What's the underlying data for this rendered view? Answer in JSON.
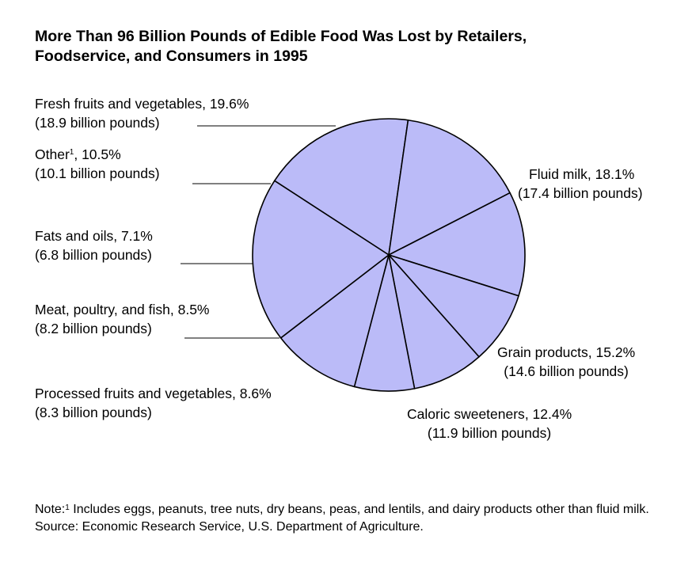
{
  "chart_data": {
    "type": "pie",
    "title_line1": "More Than 96 Billion Pounds of Edible Food Was Lost by Retailers,",
    "title_line2": "Foodservice, and Consumers in 1995",
    "slices": [
      {
        "name": "Fluid milk",
        "pct_label": ", 18.1%",
        "percent": 18.1,
        "amount": "(17.4 billion pounds)"
      },
      {
        "name": "Grain products",
        "pct_label": ", 15.2%",
        "percent": 15.2,
        "amount": "(14.6 billion pounds)"
      },
      {
        "name": "Caloric sweeteners",
        "pct_label": ", 12.4%",
        "percent": 12.4,
        "amount": "(11.9 billion pounds)"
      },
      {
        "name": "Processed fruits and vegetables",
        "pct_label": ",  8.6%",
        "percent": 8.6,
        "amount": "(8.3 billion pounds)"
      },
      {
        "name": "Meat, poultry, and fish",
        "pct_label": ", 8.5%",
        "percent": 8.5,
        "amount": "(8.2 billion pounds)"
      },
      {
        "name": "Fats and oils",
        "pct_label": ", 7.1%",
        "percent": 7.1,
        "amount": "(6.8 billion pounds)"
      },
      {
        "name": "Other",
        "footnote": "1",
        "pct_label": ", 10.5%",
        "percent": 10.5,
        "amount": "(10.1 billion pounds)"
      },
      {
        "name": "Fresh fruits and vegetables",
        "pct_label": ", 19.6%",
        "percent": 19.6,
        "amount": "(18.9 billion pounds)"
      }
    ],
    "fill_color": "#bbbbf8",
    "edge_color": "#000000"
  },
  "note": {
    "prefix": "Note:",
    "footnote": "1",
    "text": " Includes eggs, peanuts, tree nuts, dry beans, peas, and lentils, and dairy products other than fluid milk. Source:  Economic Research Service, U.S. Department of Agriculture."
  }
}
